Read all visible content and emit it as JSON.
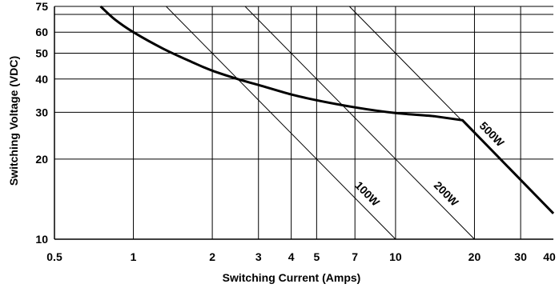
{
  "chart_data": {
    "type": "line",
    "title": "",
    "xlabel": "Switching Current (Amps)",
    "ylabel": "Switching Voltage (VDC)",
    "x_scale": "log",
    "y_scale": "log",
    "xlim": [
      0.5,
      40
    ],
    "ylim": [
      10,
      75
    ],
    "grid": true,
    "legend": "none",
    "x_ticks": [
      {
        "value": 0.5,
        "label": "0.5"
      },
      {
        "value": 1,
        "label": "1"
      },
      {
        "value": 2,
        "label": "2"
      },
      {
        "value": 3,
        "label": "3"
      },
      {
        "value": 4,
        "label": "4"
      },
      {
        "value": 5,
        "label": "5"
      },
      {
        "value": 7,
        "label": "7"
      },
      {
        "value": 10,
        "label": "10"
      },
      {
        "value": 20,
        "label": "20"
      },
      {
        "value": 30,
        "label": "30"
      },
      {
        "value": 40,
        "label": "40"
      }
    ],
    "y_ticks": [
      {
        "value": 10,
        "label": "10"
      },
      {
        "value": 20,
        "label": "20"
      },
      {
        "value": 30,
        "label": "30"
      },
      {
        "value": 40,
        "label": "40"
      },
      {
        "value": 50,
        "label": "50"
      },
      {
        "value": 60,
        "label": "60"
      },
      {
        "value": 70,
        "label": ""
      },
      {
        "value": 75,
        "label": "75"
      }
    ],
    "power_lines": [
      {
        "label": "100W",
        "power": 100
      },
      {
        "label": "200W",
        "power": 200
      },
      {
        "label": "500W",
        "power": 500
      }
    ],
    "series": [
      {
        "x": [
          0.75,
          0.85,
          1,
          1.3,
          1.7,
          2,
          2.5,
          3,
          4,
          5,
          7,
          10,
          14,
          18,
          40
        ],
        "y": [
          75,
          67,
          60,
          52,
          46,
          43,
          40,
          38,
          35,
          33.3,
          31.3,
          29.8,
          29,
          28,
          12.5
        ]
      }
    ]
  }
}
